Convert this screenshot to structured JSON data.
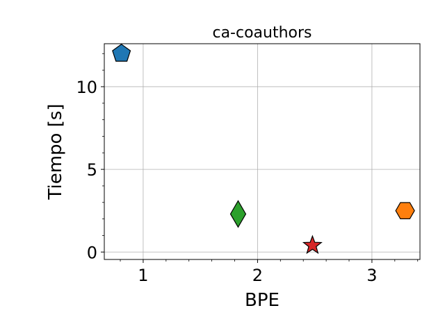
{
  "chart_data": {
    "type": "scatter",
    "title": "ca-coauthors",
    "xlabel": "BPE",
    "ylabel": "Tiempo [s]",
    "xlim": [
      0.66,
      3.42
    ],
    "ylim": [
      -0.45,
      12.6
    ],
    "xticks": [
      1,
      2,
      3
    ],
    "xtick_labels": [
      "1",
      "2",
      "3"
    ],
    "yticks": [
      0,
      5,
      10
    ],
    "ytick_labels": [
      "0",
      "5",
      "10"
    ],
    "grid": true,
    "legend": "none",
    "points": [
      {
        "x": 0.81,
        "y": 12.0,
        "marker": "pentagon",
        "color": "#1f77b4"
      },
      {
        "x": 3.29,
        "y": 2.5,
        "marker": "hexagon",
        "color": "#ff7f0e"
      },
      {
        "x": 1.83,
        "y": 2.3,
        "marker": "thin-diamond",
        "color": "#2ca02c"
      },
      {
        "x": 2.48,
        "y": 0.4,
        "marker": "star",
        "color": "#d62728"
      }
    ]
  }
}
